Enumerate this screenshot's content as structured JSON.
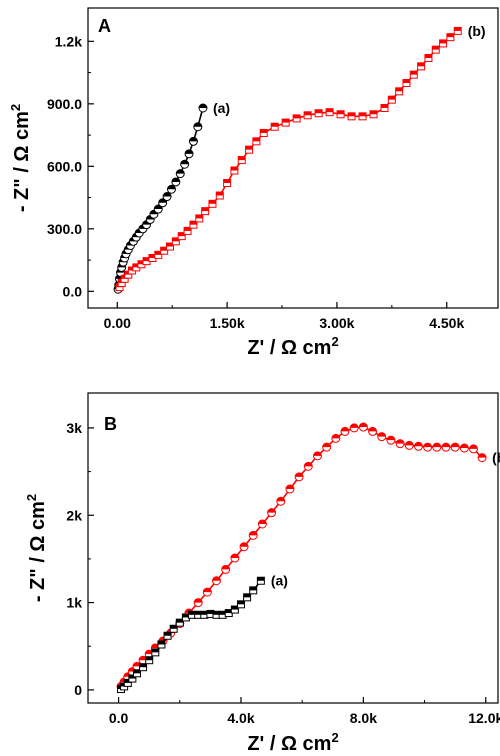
{
  "chart_data": [
    {
      "type": "scatter",
      "panel_label": "A",
      "xlabel": "Z' / Ω cm",
      "xlabel_sup": "2",
      "ylabel": "- Z\" / Ω cm",
      "ylabel_sup": "2",
      "xlim": [
        -400,
        5200
      ],
      "ylim": [
        -80,
        1360
      ],
      "xticks": [
        0,
        1500,
        3000,
        4500
      ],
      "xtick_labels": [
        "0.00",
        "1.50k",
        "3.00k",
        "4.50k"
      ],
      "yticks": [
        0,
        300,
        600,
        900,
        1200
      ],
      "ytick_labels": [
        "0.0",
        "300.0",
        "600.0",
        "900.0",
        "1.2k"
      ],
      "grid": false,
      "series": [
        {
          "name": "(a)",
          "label": "(a)",
          "color": "#000000",
          "marker": "circle-half",
          "x": [
            10,
            20,
            30,
            45,
            60,
            80,
            100,
            120,
            150,
            180,
            220,
            260,
            300,
            350,
            400,
            450,
            500,
            560,
            620,
            680,
            740,
            800,
            860,
            920,
            980,
            1040,
            1100,
            1170
          ],
          "y": [
            10,
            30,
            60,
            90,
            115,
            140,
            160,
            180,
            200,
            220,
            240,
            260,
            280,
            300,
            320,
            345,
            370,
            395,
            425,
            455,
            490,
            525,
            565,
            610,
            660,
            720,
            790,
            880
          ]
        },
        {
          "name": "(b)",
          "label": "(b)",
          "color": "#ff0000",
          "marker": "square-half",
          "x": [
            30,
            60,
            100,
            150,
            200,
            260,
            330,
            400,
            480,
            560,
            640,
            720,
            800,
            880,
            960,
            1040,
            1120,
            1200,
            1300,
            1400,
            1500,
            1600,
            1700,
            1800,
            1900,
            2000,
            2150,
            2300,
            2450,
            2600,
            2750,
            2900,
            3050,
            3200,
            3350,
            3500,
            3650,
            3750,
            3850,
            3950,
            4050,
            4150,
            4250,
            4350,
            4450,
            4550,
            4650
          ],
          "y": [
            20,
            40,
            60,
            80,
            100,
            115,
            130,
            145,
            160,
            175,
            195,
            215,
            240,
            265,
            290,
            320,
            350,
            385,
            420,
            460,
            520,
            580,
            630,
            680,
            720,
            760,
            790,
            810,
            830,
            845,
            855,
            860,
            850,
            840,
            840,
            850,
            880,
            920,
            960,
            1000,
            1040,
            1080,
            1120,
            1160,
            1190,
            1220,
            1250
          ]
        }
      ]
    },
    {
      "type": "scatter",
      "panel_label": "B",
      "xlabel": "Z' / Ω cm",
      "xlabel_sup": "2",
      "ylabel": "- Z\" / Ω cm",
      "ylabel_sup": "2",
      "xlim": [
        -1000,
        12400
      ],
      "ylim": [
        -150,
        3400
      ],
      "xticks": [
        0,
        4000,
        8000,
        12000
      ],
      "xtick_labels": [
        "0.0",
        "4.0k",
        "8.0k",
        "12.0k"
      ],
      "yticks": [
        0,
        1000,
        2000,
        3000
      ],
      "ytick_labels": [
        "0",
        "1k",
        "2k",
        "3k"
      ],
      "grid": false,
      "series": [
        {
          "name": "(b)",
          "label": "(b)",
          "color": "#ff0000",
          "marker": "circle-half",
          "x": [
            80,
            180,
            300,
            450,
            600,
            800,
            1000,
            1200,
            1450,
            1700,
            2000,
            2300,
            2600,
            2900,
            3200,
            3500,
            3800,
            4100,
            4400,
            4700,
            5000,
            5300,
            5600,
            5900,
            6200,
            6500,
            6800,
            7100,
            7400,
            7700,
            8000,
            8300,
            8600,
            8900,
            9200,
            9500,
            9800,
            10100,
            10400,
            10700,
            11000,
            11300,
            11600,
            11880
          ],
          "y": [
            40,
            90,
            150,
            210,
            270,
            340,
            410,
            480,
            560,
            650,
            760,
            880,
            1000,
            1120,
            1250,
            1380,
            1510,
            1640,
            1770,
            1900,
            2030,
            2160,
            2300,
            2440,
            2560,
            2680,
            2780,
            2880,
            2960,
            3000,
            3010,
            2960,
            2900,
            2860,
            2820,
            2800,
            2790,
            2780,
            2780,
            2780,
            2780,
            2770,
            2760,
            2660
          ]
        },
        {
          "name": "(a)",
          "label": "(a)",
          "color": "#000000",
          "marker": "square-half",
          "x": [
            80,
            180,
            300,
            450,
            600,
            800,
            1000,
            1200,
            1400,
            1600,
            1800,
            2000,
            2200,
            2400,
            2600,
            2800,
            3000,
            3200,
            3400,
            3600,
            3800,
            4000,
            4200,
            4400,
            4650
          ],
          "y": [
            10,
            40,
            80,
            130,
            190,
            260,
            340,
            430,
            520,
            620,
            700,
            770,
            830,
            860,
            860,
            860,
            870,
            860,
            860,
            880,
            920,
            980,
            1060,
            1140,
            1250
          ]
        }
      ]
    }
  ]
}
